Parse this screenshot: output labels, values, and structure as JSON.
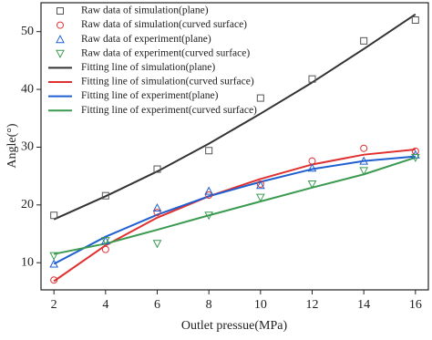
{
  "chart_data": {
    "type": "line",
    "x_label": "Outlet pressue(MPa)",
    "y_label": "Angle(°)",
    "x": [
      2,
      4,
      6,
      8,
      10,
      12,
      14,
      16
    ],
    "xlim": [
      1.5,
      16.5
    ],
    "xticks": [
      2,
      4,
      6,
      8,
      10,
      12,
      14,
      16
    ],
    "ylim": [
      5.3,
      55
    ],
    "yticks": [
      10,
      20,
      30,
      40,
      50
    ],
    "legend": "upper-left",
    "series": [
      {
        "name": "Raw data of simulation(plane)",
        "color": "#555555",
        "style": "marker",
        "marker": "square",
        "values": [
          18.2,
          21.6,
          26.2,
          29.4,
          38.5,
          41.8,
          48.4,
          52
        ]
      },
      {
        "name": "Raw data of simulation(curved surface)",
        "color": "#e03030",
        "style": "marker",
        "marker": "circle",
        "values": [
          7,
          12.3,
          18.7,
          21.7,
          23.6,
          27.6,
          29.8,
          29.3
        ]
      },
      {
        "name": "Raw data of experiment(plane)",
        "color": "#1f5fd0",
        "style": "marker",
        "marker": "triangle-up",
        "values": [
          9.8,
          13.8,
          19.5,
          22.4,
          23.4,
          26.4,
          27.6,
          28.7
        ]
      },
      {
        "name": "Raw data of experiment(curved surface)",
        "color": "#3a9a50",
        "style": "marker",
        "marker": "triangle-down",
        "values": [
          11.2,
          13.8,
          13.3,
          18.2,
          21.3,
          23.6,
          25.9,
          28.2
        ]
      },
      {
        "name": "Fitting line of simulation(plane)",
        "color": "#333333",
        "style": "line",
        "values": [
          17.5,
          21.5,
          25.8,
          30.6,
          35.8,
          41.2,
          47,
          53
        ]
      },
      {
        "name": "Fitting line of simulation(curved surface)",
        "color": "#e03030",
        "style": "line",
        "values": [
          6.8,
          13,
          17.8,
          21.5,
          24.5,
          27,
          28.7,
          29.6
        ]
      },
      {
        "name": "Fitting line of experiment(plane)",
        "color": "#1f5fd0",
        "style": "line",
        "values": [
          9.8,
          14.5,
          18.3,
          21.5,
          24,
          26.2,
          27.6,
          28.4
        ]
      },
      {
        "name": "Fitting line of experiment(curved surface)",
        "color": "#3a9a50",
        "style": "line",
        "values": [
          11.5,
          13.3,
          15.7,
          18.2,
          20.6,
          23,
          25.3,
          28.2
        ]
      }
    ]
  }
}
